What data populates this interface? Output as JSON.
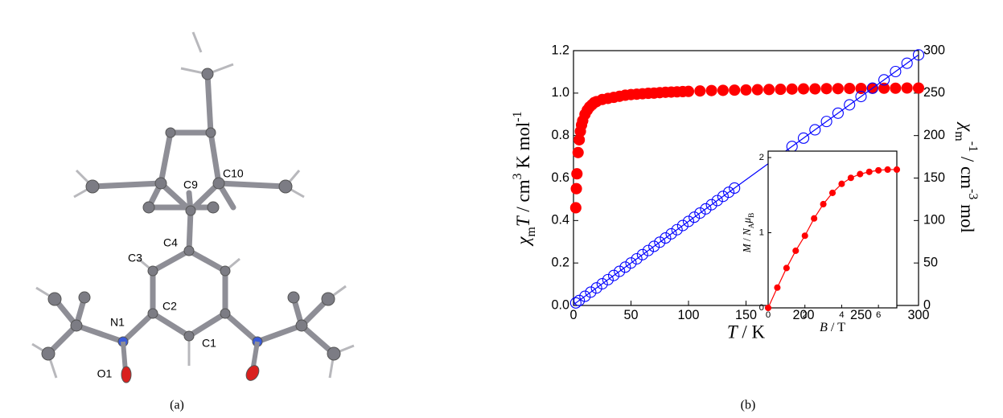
{
  "panels": {
    "a": {
      "label": "(a)",
      "atom_labels": [
        "C9",
        "C10",
        "C4",
        "C3",
        "C2",
        "N1",
        "C1",
        "O1"
      ]
    },
    "b": {
      "label": "(b)"
    }
  },
  "chart_data": [
    {
      "type": "scatter",
      "xlabel": [
        {
          "text": "T",
          "italic": true
        },
        {
          "text": " / K"
        }
      ],
      "ylabel": [
        {
          "text": "χ",
          "italic": true
        },
        {
          "text": "m",
          "sub": true
        },
        {
          "text": "T",
          "italic": true
        },
        {
          "text": " / cm"
        },
        {
          "text": "3",
          "sup": true
        },
        {
          "text": " K mol"
        },
        {
          "text": "-1",
          "sup": true
        }
      ],
      "y2label": [
        {
          "text": "χ",
          "italic": true
        },
        {
          "text": "m",
          "sub": true
        },
        {
          "text": "-1",
          "sup": true
        },
        {
          "text": " / cm"
        },
        {
          "text": "-3",
          "sup": true
        },
        {
          "text": " mol"
        }
      ],
      "xlim": [
        0,
        300
      ],
      "xticks": [
        0,
        50,
        100,
        150,
        200,
        250,
        300
      ],
      "ylim": [
        0,
        1.2
      ],
      "yticks": [
        {
          "value": 0,
          "label": "0.0"
        },
        0.2,
        0.4,
        0.6,
        0.8,
        {
          "value": 1,
          "label": "1.0"
        },
        1.2
      ],
      "y2lim": [
        0,
        300
      ],
      "y2ticks": [
        0,
        50,
        100,
        150,
        200,
        250,
        300
      ],
      "series": [
        {
          "color": "#ff0000",
          "marker": "filled",
          "axis": "y",
          "x": [
            2,
            2.5,
            3,
            4,
            5,
            6,
            7,
            8,
            10,
            12,
            14,
            16,
            18,
            20,
            25,
            30,
            35,
            40,
            45,
            50,
            55,
            60,
            65,
            70,
            75,
            80,
            85,
            90,
            95,
            100,
            110,
            120,
            130,
            140,
            150,
            160,
            170,
            180,
            190,
            200,
            210,
            220,
            230,
            240,
            250,
            260,
            270,
            280,
            290,
            300
          ],
          "values": [
            0.46,
            0.55,
            0.62,
            0.72,
            0.78,
            0.82,
            0.85,
            0.87,
            0.9,
            0.92,
            0.935,
            0.945,
            0.955,
            0.96,
            0.97,
            0.975,
            0.98,
            0.985,
            0.99,
            0.993,
            0.995,
            0.997,
            0.999,
            1.0,
            1.002,
            1.004,
            1.005,
            1.006,
            1.007,
            1.008,
            1.01,
            1.012,
            1.013,
            1.014,
            1.015,
            1.016,
            1.017,
            1.018,
            1.019,
            1.02,
            1.02,
            1.021,
            1.021,
            1.022,
            1.022,
            1.023,
            1.023,
            1.023,
            1.024,
            1.024
          ]
        },
        {
          "color": "#0000ff",
          "marker": "open",
          "axis": "y2",
          "x": [
            2,
            5,
            10,
            15,
            20,
            25,
            30,
            35,
            40,
            45,
            50,
            55,
            60,
            65,
            70,
            75,
            80,
            85,
            90,
            95,
            100,
            105,
            110,
            115,
            120,
            125,
            130,
            135,
            140,
            190,
            200,
            210,
            220,
            230,
            240,
            250,
            260,
            270,
            280,
            290,
            300
          ],
          "values": [
            3,
            5.9,
            10.8,
            15.7,
            20.6,
            25.5,
            30.4,
            35.3,
            40.2,
            45.1,
            50,
            54.9,
            59.8,
            64.7,
            69.6,
            74.5,
            79.4,
            84.3,
            89.2,
            94.1,
            99,
            103.9,
            108.8,
            113.7,
            118.6,
            123.5,
            128.4,
            133.3,
            138.2,
            187.2,
            197,
            206.8,
            216.6,
            226.4,
            236.2,
            246,
            255.8,
            265.6,
            275.4,
            285.2,
            295
          ]
        },
        {
          "color": "#0000ff",
          "line": true,
          "axis": "y2",
          "x": [
            0,
            300
          ],
          "values": [
            1,
            295
          ]
        }
      ]
    },
    {
      "type": "scatter",
      "xlabel": [
        {
          "text": "B",
          "italic": true
        },
        {
          "text": " / T"
        }
      ],
      "ylabel": [
        {
          "text": "M",
          "italic": true
        },
        {
          "text": " / "
        },
        {
          "text": "N",
          "italic": true
        },
        {
          "text": "A",
          "sub": true
        },
        {
          "text": "μ",
          "italic": true
        },
        {
          "text": "B",
          "sub": true
        }
      ],
      "xlim": [
        0,
        7
      ],
      "xticks": [
        0,
        2,
        4,
        6
      ],
      "ylim": [
        0,
        2
      ],
      "yticks": [
        0,
        1,
        2
      ],
      "series": [
        {
          "color": "#ff0000",
          "marker": "filled",
          "line": true,
          "axis": "y",
          "x": [
            0,
            0.5,
            1,
            1.5,
            2,
            2.5,
            3,
            3.5,
            4,
            4.5,
            5,
            5.5,
            6,
            6.5,
            7
          ],
          "values": [
            0,
            0.27,
            0.53,
            0.76,
            0.96,
            1.19,
            1.38,
            1.53,
            1.65,
            1.73,
            1.78,
            1.81,
            1.83,
            1.84,
            1.84
          ]
        }
      ]
    }
  ]
}
